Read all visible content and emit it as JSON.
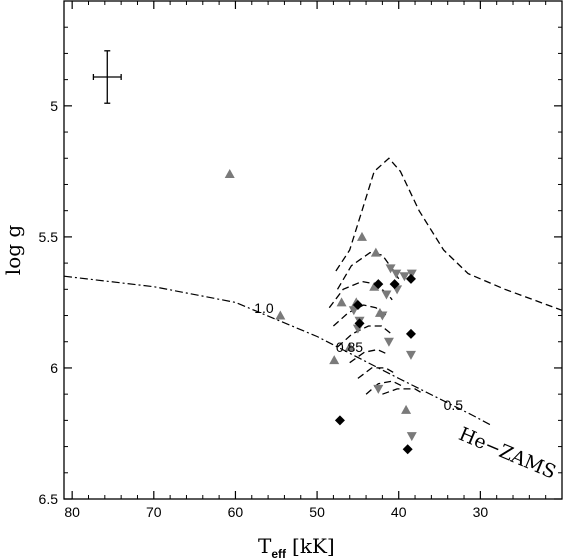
{
  "chart_data": {
    "type": "scatter",
    "title": "",
    "xlabel_main": "T",
    "xlabel_sub": "eff",
    "xlabel_unit": "[kK]",
    "ylabel": "log g",
    "xlim": [
      81,
      20
    ],
    "ylim": [
      6.5,
      4.6
    ],
    "x_inverted": true,
    "y_inverted": true,
    "x_ticks": [
      80,
      70,
      60,
      50,
      40,
      30
    ],
    "x_tick_labels": [
      "80",
      "70",
      "60",
      "50",
      "40",
      "30"
    ],
    "y_ticks": [
      5.0,
      5.5,
      6.0,
      6.5
    ],
    "y_tick_labels": [
      "5",
      "5.5",
      "6",
      "6.5"
    ],
    "grid": false,
    "colors": {
      "grey_marker": "#7a7a7a",
      "black_marker": "#000000",
      "line": "#000000"
    },
    "error_bar": {
      "x": 75.7,
      "y": 4.89,
      "x_err": 1.7,
      "y_err": 0.1
    },
    "series": [
      {
        "marker": "triangle-up",
        "color": "#7a7a7a",
        "points": [
          {
            "x": 60.7,
            "y": 5.26
          },
          {
            "x": 44.5,
            "y": 5.5
          },
          {
            "x": 42.8,
            "y": 5.56
          },
          {
            "x": 47.0,
            "y": 5.75
          },
          {
            "x": 45.2,
            "y": 5.75
          },
          {
            "x": 43.0,
            "y": 5.69
          },
          {
            "x": 54.5,
            "y": 5.8
          },
          {
            "x": 46.0,
            "y": 5.92
          },
          {
            "x": 47.9,
            "y": 5.97
          },
          {
            "x": 39.1,
            "y": 6.16
          },
          {
            "x": 42.3,
            "y": 5.79
          }
        ]
      },
      {
        "marker": "triangle-down",
        "color": "#7a7a7a",
        "points": [
          {
            "x": 41.0,
            "y": 5.62
          },
          {
            "x": 40.3,
            "y": 5.64
          },
          {
            "x": 39.3,
            "y": 5.65
          },
          {
            "x": 38.4,
            "y": 5.64
          },
          {
            "x": 40.2,
            "y": 5.7
          },
          {
            "x": 41.5,
            "y": 5.72
          },
          {
            "x": 45.5,
            "y": 5.78
          },
          {
            "x": 42.0,
            "y": 5.8
          },
          {
            "x": 44.8,
            "y": 5.82
          },
          {
            "x": 45.0,
            "y": 5.85
          },
          {
            "x": 41.2,
            "y": 5.9
          },
          {
            "x": 42.5,
            "y": 6.08
          },
          {
            "x": 38.5,
            "y": 5.95
          },
          {
            "x": 38.4,
            "y": 6.26
          }
        ]
      },
      {
        "marker": "diamond",
        "color": "#000000",
        "points": [
          {
            "x": 42.5,
            "y": 5.68
          },
          {
            "x": 40.5,
            "y": 5.68
          },
          {
            "x": 38.5,
            "y": 5.66
          },
          {
            "x": 45.0,
            "y": 5.76
          },
          {
            "x": 44.8,
            "y": 5.83
          },
          {
            "x": 38.5,
            "y": 5.87
          },
          {
            "x": 47.2,
            "y": 6.2
          },
          {
            "x": 38.9,
            "y": 6.31
          }
        ]
      }
    ],
    "he_zams_line": [
      {
        "x": 81.0,
        "y": 5.65
      },
      {
        "x": 70.0,
        "y": 5.69
      },
      {
        "x": 60.0,
        "y": 5.75
      },
      {
        "x": 50.0,
        "y": 5.88
      },
      {
        "x": 40.0,
        "y": 6.04
      },
      {
        "x": 31.0,
        "y": 6.18
      },
      {
        "x": 28.6,
        "y": 6.22
      }
    ],
    "tracks": [
      [
        {
          "x": 47.7,
          "y": 5.63
        },
        {
          "x": 46.0,
          "y": 5.55
        },
        {
          "x": 44.5,
          "y": 5.4
        },
        {
          "x": 43.0,
          "y": 5.25
        },
        {
          "x": 41.2,
          "y": 5.2
        },
        {
          "x": 39.8,
          "y": 5.25
        },
        {
          "x": 37.5,
          "y": 5.4
        },
        {
          "x": 34.5,
          "y": 5.55
        },
        {
          "x": 31.5,
          "y": 5.64
        },
        {
          "x": 27.0,
          "y": 5.7
        },
        {
          "x": 20.0,
          "y": 5.78
        }
      ],
      [
        {
          "x": 47.5,
          "y": 5.7
        },
        {
          "x": 45.8,
          "y": 5.61
        },
        {
          "x": 43.5,
          "y": 5.56
        },
        {
          "x": 42.0,
          "y": 5.57
        },
        {
          "x": 40.6,
          "y": 5.63
        },
        {
          "x": 40.0,
          "y": 5.66
        }
      ],
      [
        {
          "x": 48.5,
          "y": 5.77
        },
        {
          "x": 46.8,
          "y": 5.7
        },
        {
          "x": 44.5,
          "y": 5.67
        },
        {
          "x": 42.8,
          "y": 5.68
        },
        {
          "x": 41.3,
          "y": 5.72
        },
        {
          "x": 40.8,
          "y": 5.74
        }
      ],
      [
        {
          "x": 48.0,
          "y": 5.84
        },
        {
          "x": 46.2,
          "y": 5.79
        },
        {
          "x": 44.3,
          "y": 5.76
        },
        {
          "x": 42.8,
          "y": 5.77
        },
        {
          "x": 41.5,
          "y": 5.8
        }
      ],
      [
        {
          "x": 47.5,
          "y": 5.92
        },
        {
          "x": 45.7,
          "y": 5.87
        },
        {
          "x": 43.7,
          "y": 5.84
        },
        {
          "x": 42.1,
          "y": 5.84
        },
        {
          "x": 40.9,
          "y": 5.87
        }
      ],
      [
        {
          "x": 46.0,
          "y": 5.98
        },
        {
          "x": 44.2,
          "y": 5.94
        },
        {
          "x": 42.6,
          "y": 5.93
        },
        {
          "x": 41.2,
          "y": 5.95
        }
      ],
      [
        {
          "x": 45.0,
          "y": 6.04
        },
        {
          "x": 43.3,
          "y": 6.0
        },
        {
          "x": 41.6,
          "y": 6.0
        },
        {
          "x": 40.5,
          "y": 6.02
        }
      ],
      [
        {
          "x": 44.0,
          "y": 6.1
        },
        {
          "x": 42.5,
          "y": 6.06
        },
        {
          "x": 40.8,
          "y": 6.05
        },
        {
          "x": 39.5,
          "y": 6.07
        }
      ],
      [
        {
          "x": 42.0,
          "y": 6.1
        },
        {
          "x": 40.2,
          "y": 6.08
        },
        {
          "x": 38.0,
          "y": 6.08
        },
        {
          "x": 36.9,
          "y": 6.1
        }
      ]
    ],
    "annotations": [
      {
        "text": "1.0",
        "x": 57.7,
        "y": 5.79
      },
      {
        "text": "0.85",
        "x": 47.7,
        "y": 5.94
      },
      {
        "text": "0.5",
        "x": 34.5,
        "y": 6.16
      },
      {
        "text": "He−ZAMS",
        "x": 32.8,
        "y": 6.27,
        "rotate": 23
      }
    ]
  }
}
